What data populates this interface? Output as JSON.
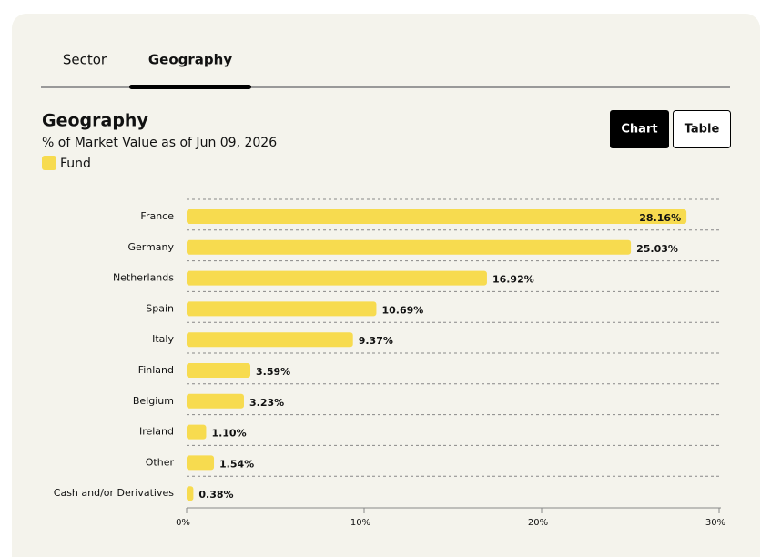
{
  "tabs": [
    "Sector",
    "Geography"
  ],
  "buttons": [
    "Chart",
    "Table"
  ],
  "chart_data": {
    "type": "bar",
    "orientation": "horizontal",
    "title": "Geography",
    "subtitle": "% of Market Value as of Jun 09, 2026",
    "categories": [
      "France",
      "Germany",
      "Netherlands",
      "Spain",
      "Italy",
      "Finland",
      "Belgium",
      "Ireland",
      "Other",
      "Cash and/or Derivatives"
    ],
    "series": [
      {
        "name": "Fund",
        "color": "#f7db4f",
        "values": [
          28.16,
          25.03,
          16.92,
          10.69,
          9.37,
          3.59,
          3.23,
          1.1,
          1.54,
          0.38
        ],
        "value_labels": [
          "28.16%",
          "25.03%",
          "16.92%",
          "10.69%",
          "9.37%",
          "3.59%",
          "3.23%",
          "1.10%",
          "1.54%",
          "0.38%"
        ]
      }
    ],
    "xlim": [
      0,
      30
    ],
    "xticks": [
      {
        "value": 0,
        "label": "0%"
      },
      {
        "value": 10,
        "label": "10%"
      },
      {
        "value": 20,
        "label": "20%"
      },
      {
        "value": 30,
        "label": "30%"
      }
    ]
  }
}
